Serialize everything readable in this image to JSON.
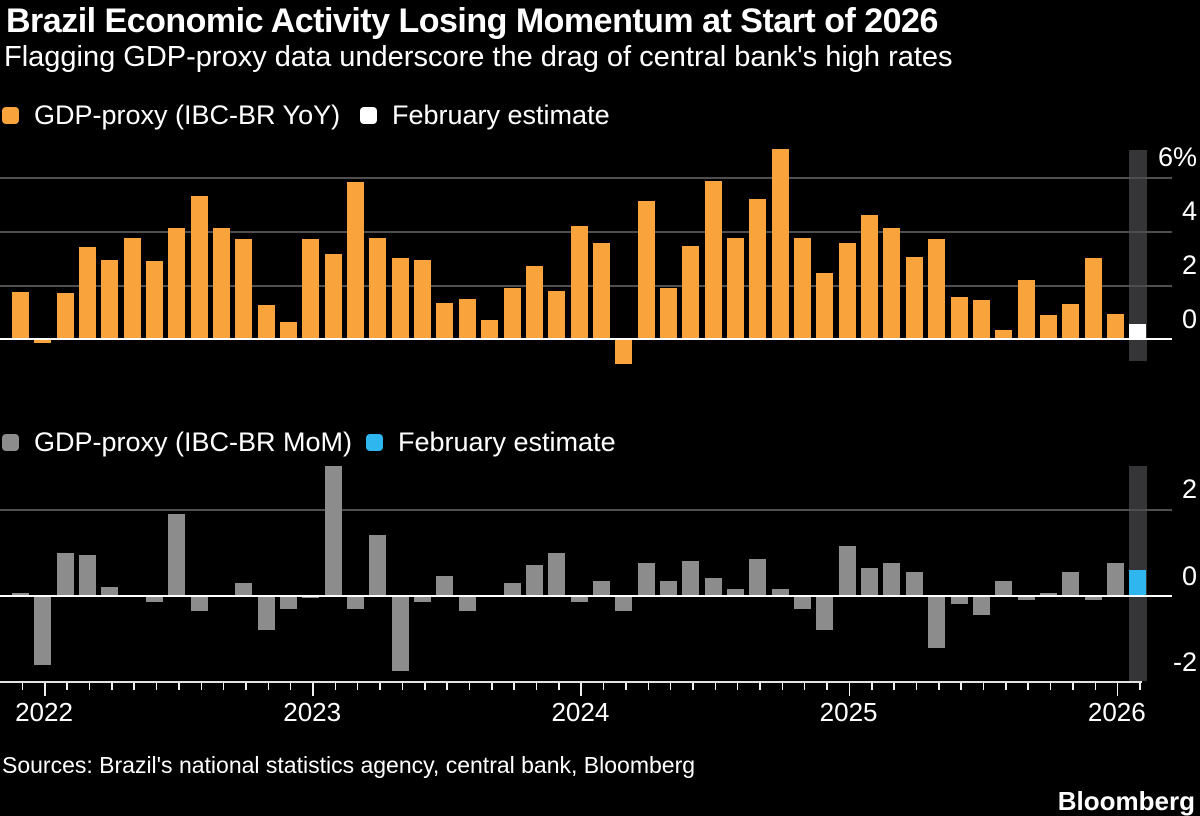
{
  "title": "Brazil Economic Activity Losing Momentum at Start of 2026",
  "subtitle": "Flagging GDP-proxy data underscore the drag of central bank's high rates",
  "source": "Sources: Brazil's national statistics agency, central bank, Bloomberg",
  "logo": "Bloomberg",
  "colors": {
    "background": "#000000",
    "text": "#FFFFFF",
    "orange": "#F8A33C",
    "gray": "#8C8C8C",
    "blue": "#2FB6EE",
    "white": "#FFFFFF",
    "band": "#353538",
    "gridline": "#4E4E4E"
  },
  "x_axis": {
    "year_labels": [
      "2022",
      "2023",
      "2024",
      "2025",
      "2026"
    ]
  },
  "charts": [
    {
      "name": "yoy",
      "legend": [
        {
          "label": "GDP-proxy (IBC-BR YoY)",
          "color_key": "orange"
        },
        {
          "label": "February estimate",
          "color_key": "white"
        }
      ],
      "y_axis_labels": [
        {
          "text": "6%",
          "value": 6
        },
        {
          "text": "4",
          "value": 4
        },
        {
          "text": "2",
          "value": 2
        },
        {
          "text": "0",
          "value": 0
        }
      ]
    },
    {
      "name": "mom",
      "legend": [
        {
          "label": "GDP-proxy (IBC-BR MoM)",
          "color_key": "gray"
        },
        {
          "label": "February estimate",
          "color_key": "blue"
        }
      ],
      "y_axis_labels": [
        {
          "text": "2",
          "value": 2
        },
        {
          "text": "0",
          "value": 0
        },
        {
          "text": "-2",
          "value": -2
        }
      ]
    }
  ],
  "chart_data": [
    {
      "type": "bar",
      "name": "GDP-proxy (IBC-BR YoY)",
      "unit": "%",
      "title": "Brazil GDP-proxy, year-over-year change",
      "legend_position": "top-left",
      "grid": true,
      "gridlines": [
        6,
        4,
        2,
        0
      ],
      "ylim": [
        -1.2,
        7.3
      ],
      "estimate_label": "February estimate",
      "estimate_index": 50,
      "x": [
        "2021-12",
        "2022-01",
        "2022-02",
        "2022-03",
        "2022-04",
        "2022-05",
        "2022-06",
        "2022-07",
        "2022-08",
        "2022-09",
        "2022-10",
        "2022-11",
        "2022-12",
        "2023-01",
        "2023-02",
        "2023-03",
        "2023-04",
        "2023-05",
        "2023-06",
        "2023-07",
        "2023-08",
        "2023-09",
        "2023-10",
        "2023-11",
        "2023-12",
        "2024-01",
        "2024-02",
        "2024-03",
        "2024-04",
        "2024-05",
        "2024-06",
        "2024-07",
        "2024-08",
        "2024-09",
        "2024-10",
        "2024-11",
        "2024-12",
        "2025-01",
        "2025-02",
        "2025-03",
        "2025-04",
        "2025-05",
        "2025-06",
        "2025-07",
        "2025-08",
        "2025-09",
        "2025-10",
        "2025-11",
        "2025-12",
        "2026-01",
        "2026-02"
      ],
      "values": [
        1.75,
        -0.15,
        1.7,
        3.4,
        2.95,
        3.75,
        2.9,
        4.1,
        5.3,
        4.1,
        3.7,
        1.25,
        0.65,
        3.7,
        3.15,
        5.8,
        3.75,
        3.0,
        2.95,
        1.35,
        1.5,
        0.7,
        1.9,
        2.7,
        1.8,
        4.2,
        3.55,
        -0.9,
        5.1,
        1.9,
        3.45,
        5.85,
        3.75,
        5.2,
        7.05,
        3.75,
        2.45,
        3.55,
        4.6,
        4.1,
        3.05,
        3.7,
        1.55,
        1.45,
        0.35,
        2.2,
        0.9,
        1.3,
        3.0,
        0.95,
        0.55
      ]
    },
    {
      "type": "bar",
      "name": "GDP-proxy (IBC-BR MoM)",
      "unit": "%",
      "title": "Brazil GDP-proxy, month-over-month change",
      "legend_position": "top-left",
      "grid": true,
      "gridlines": [
        2,
        0,
        -2
      ],
      "ylim": [
        -2,
        3.1
      ],
      "estimate_label": "February estimate",
      "estimate_index": 50,
      "x": [
        "2021-12",
        "2022-01",
        "2022-02",
        "2022-03",
        "2022-04",
        "2022-05",
        "2022-06",
        "2022-07",
        "2022-08",
        "2022-09",
        "2022-10",
        "2022-11",
        "2022-12",
        "2023-01",
        "2023-02",
        "2023-03",
        "2023-04",
        "2023-05",
        "2023-06",
        "2023-07",
        "2023-08",
        "2023-09",
        "2023-10",
        "2023-11",
        "2023-12",
        "2024-01",
        "2024-02",
        "2024-03",
        "2024-04",
        "2024-05",
        "2024-06",
        "2024-07",
        "2024-08",
        "2024-09",
        "2024-10",
        "2024-11",
        "2024-12",
        "2025-01",
        "2025-02",
        "2025-03",
        "2025-04",
        "2025-05",
        "2025-06",
        "2025-07",
        "2025-08",
        "2025-09",
        "2025-10",
        "2025-11",
        "2025-12",
        "2026-01",
        "2026-02"
      ],
      "values": [
        0.07,
        -1.6,
        1.0,
        0.95,
        0.2,
        0.0,
        -0.15,
        1.9,
        -0.35,
        0.0,
        0.3,
        -0.8,
        -0.3,
        -0.05,
        3.0,
        -0.3,
        1.4,
        -1.75,
        -0.15,
        0.45,
        -0.35,
        0.0,
        0.3,
        0.7,
        1.0,
        -0.15,
        0.35,
        -0.35,
        0.75,
        0.35,
        0.8,
        0.4,
        0.15,
        0.85,
        0.15,
        -0.3,
        -0.8,
        1.15,
        0.65,
        0.75,
        0.55,
        -1.2,
        -0.2,
        -0.45,
        0.35,
        -0.1,
        0.07,
        0.55,
        -0.1,
        0.75,
        0.6
      ]
    }
  ]
}
